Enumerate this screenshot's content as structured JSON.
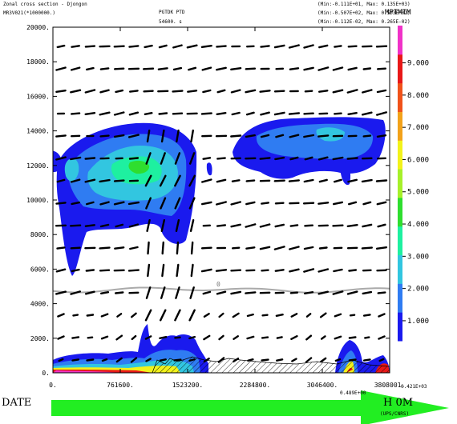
{
  "header": {
    "title": "Zonal cross section - Djongon",
    "field": "MR3V021(*1000000.)",
    "center_label": "PGTDK PTD",
    "center_sub": "54600. s",
    "range1": "(Min:-0.111E+01, Max: 0.135E+03)",
    "range2": "(Min:-0.507E+02, Max: 0.503E+02)",
    "range3": "(Min:-0.112E-02, Max: 0.265E-02)",
    "overlap_label": "MPTMTM"
  },
  "footer": {
    "date_label": "DATE",
    "time_label": "H 0M",
    "small1": "0.489E+00",
    "small2": "0.421E+03",
    "small3": "(UPS/CNRS)"
  },
  "colors": {
    "colorbar": [
      "#1a1aee",
      "#2f7cf2",
      "#32c6e0",
      "#1ef0a0",
      "#2fde2f",
      "#a6f02a",
      "#f2f21a",
      "#f2a21a",
      "#f0521a",
      "#e81818",
      "#f032c8"
    ],
    "arrow": "#22ee22"
  },
  "chart_data": {
    "type": "heatmap",
    "title": "Zonal cross section - Djongon",
    "xlim": [
      0,
      3808001
    ],
    "ylim": [
      0,
      20000
    ],
    "x_ticks": [
      "0.",
      "761600.",
      "1523200.",
      "2284800.",
      "3046400.",
      "3808001."
    ],
    "y_ticks": [
      "0.",
      "2000.",
      "4000.",
      "6000.",
      "8000.",
      "10000.",
      "12000.",
      "14000.",
      "16000.",
      "18000.",
      "20000."
    ],
    "colorbar_levels": [
      "1.000",
      "2.000",
      "3.000",
      "4.000",
      "5.000",
      "6.000",
      "7.000",
      "8.000",
      "9.000"
    ],
    "contour_label": "0",
    "zero_contour_height": 4800,
    "overlays": [
      "wind vectors",
      "shaded contours",
      "hatched orography"
    ]
  }
}
